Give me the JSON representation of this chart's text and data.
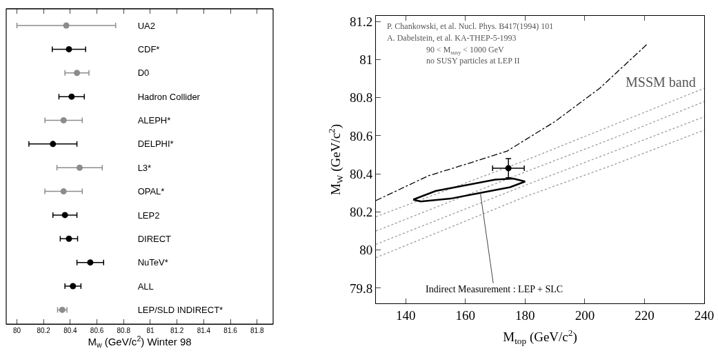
{
  "chart_data": [
    {
      "type": "scatter",
      "orientation": "horizontal",
      "xlabel": "M$_{w}$ (GeV/c$^{2}$) Winter 98",
      "categories": [
        "UA2",
        "CDF*",
        "D0",
        "Hadron Collider",
        "ALEPH*",
        "DELPHI*",
        "L3*",
        "OPAL*",
        "LEP2",
        "DIRECT",
        "NuTeV*",
        "ALL",
        "LEP/SLD INDIRECT*"
      ],
      "series": [
        {
          "color": "#000000",
          "values": [
            null,
            80.39,
            null,
            80.41,
            null,
            80.27,
            null,
            null,
            80.36,
            80.39,
            80.55,
            80.42,
            null
          ],
          "errors": [
            null,
            0.125,
            null,
            0.095,
            null,
            0.18,
            null,
            null,
            0.09,
            0.065,
            0.1,
            0.06,
            null
          ]
        },
        {
          "color": "#8c8c8c",
          "values": [
            80.37,
            null,
            80.45,
            null,
            80.35,
            null,
            80.47,
            80.35,
            null,
            null,
            null,
            null,
            80.34
          ],
          "errors": [
            0.37,
            null,
            0.09,
            null,
            0.14,
            null,
            0.17,
            0.14,
            null,
            null,
            null,
            null,
            0.035
          ]
        }
      ],
      "xlim": [
        79.92,
        81.92
      ],
      "xticks": [
        80,
        80.2,
        80.4,
        80.6,
        80.8,
        81,
        81.2,
        81.4,
        81.6,
        81.8
      ],
      "marker": "circle",
      "grid": false
    },
    {
      "type": "line",
      "xlabel": "M$_{top}$ (GeV/c$^{2}$)",
      "ylabel": "M$_{W}$ (GeV/c$^{2}$)",
      "series": [
        {
          "color": "#000000",
          "line_style": "dashed",
          "x": [
            130,
            147.6,
            160,
            174,
            190,
            205,
            220.8
          ],
          "values": [
            80.26,
            80.39,
            80.45,
            80.52,
            80.675,
            80.85,
            81.08
          ]
        },
        {
          "color": "#9a9a9a",
          "line_style": "dotted",
          "x": [
            130,
            180,
            210,
            240
          ],
          "values": [
            80.175,
            80.47,
            80.66,
            80.85
          ]
        },
        {
          "color": "#9a9a9a",
          "line_style": "dotted",
          "x": [
            130,
            180,
            210,
            240
          ],
          "values": [
            80.1,
            80.41,
            80.59,
            80.78
          ]
        },
        {
          "color": "#9a9a9a",
          "line_style": "dotted",
          "x": [
            130,
            180,
            210,
            240
          ],
          "values": [
            80.03,
            80.34,
            80.52,
            80.7
          ]
        },
        {
          "color": "#9a9a9a",
          "line_style": "dotted",
          "x": [
            130,
            180,
            210,
            240
          ],
          "values": [
            79.96,
            80.28,
            80.45,
            80.63
          ]
        },
        {
          "color": "#000000",
          "line_style": "solid",
          "x": [
            142.5,
            150,
            160,
            170,
            176,
            180
          ],
          "values": [
            80.265,
            80.31,
            80.34,
            80.37,
            80.375,
            80.36
          ]
        },
        {
          "color": "#000000",
          "line_style": "solid",
          "x": [
            142.5,
            145,
            155,
            165,
            175,
            180
          ],
          "values": [
            80.265,
            80.255,
            80.27,
            80.3,
            80.33,
            80.36
          ]
        },
        {
          "type": "scatter",
          "color": "#000000",
          "marker": "circle",
          "x": [
            174.4
          ],
          "values": [
            80.43
          ],
          "errors": [
            0.05
          ],
          "xerrors": [
            5.3
          ]
        }
      ],
      "annotations": [
        "P. Chankowski, et al. Nucl. Phys. B417(1994) 101",
        "A. Dabelstein, et al. KA-THEP-5-1993",
        "90 < M$_{susy}$ < 1000 GeV",
        "no SUSY particles at LEP II",
        "MSSM band",
        {
          "text": "Indirect Measurement : LEP + SLC",
          "x": 165,
          "y": 80.3
        }
      ],
      "xlim": [
        130,
        240
      ],
      "xticks": [
        140,
        160,
        180,
        200,
        220,
        240
      ],
      "ylim": [
        79.72,
        81.23
      ],
      "yticks": [
        79.8,
        80,
        80.2,
        80.4,
        80.6,
        80.8,
        81,
        81.2
      ],
      "grid": false
    }
  ]
}
